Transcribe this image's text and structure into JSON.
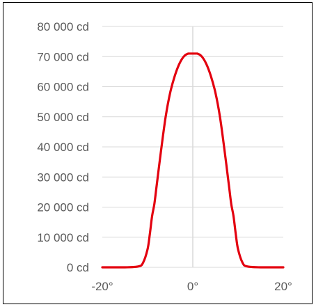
{
  "chart_data": {
    "type": "line",
    "title": "",
    "xlabel": "",
    "ylabel": "",
    "xlim": [
      -20,
      20
    ],
    "ylim": [
      0,
      80000
    ],
    "x_ticks": [
      -20,
      0,
      20
    ],
    "x_tick_labels": [
      "-20°",
      "0°",
      "20°"
    ],
    "y_ticks": [
      0,
      10000,
      20000,
      30000,
      40000,
      50000,
      60000,
      70000,
      80000
    ],
    "y_tick_labels": [
      "0 cd",
      "10 000 cd",
      "20 000 cd",
      "30 000 cd",
      "40 000 cd",
      "50 000 cd",
      "60 000 cd",
      "70 000 cd",
      "80 000 cd"
    ],
    "grid": {
      "horizontal": true,
      "vertical": false
    },
    "legend": "none",
    "series": [
      {
        "color": "#e3000f",
        "x": [
          -20,
          -15,
          -12,
          -11,
          -10,
          -9.5,
          -9,
          -8.5,
          -8,
          -7,
          -6,
          -5,
          -4,
          -3,
          -2,
          -1,
          0,
          1,
          2,
          3,
          4,
          5,
          6,
          7,
          8,
          8.5,
          9,
          9.5,
          10,
          11,
          12,
          15,
          20
        ],
        "y": [
          0,
          0,
          300,
          1500,
          6000,
          11000,
          17000,
          21000,
          27000,
          39000,
          50000,
          58000,
          63500,
          67500,
          70000,
          71000,
          71000,
          71000,
          70000,
          67500,
          63500,
          58000,
          50000,
          39000,
          27000,
          21000,
          17000,
          11000,
          6000,
          1500,
          300,
          0,
          0
        ]
      }
    ]
  }
}
